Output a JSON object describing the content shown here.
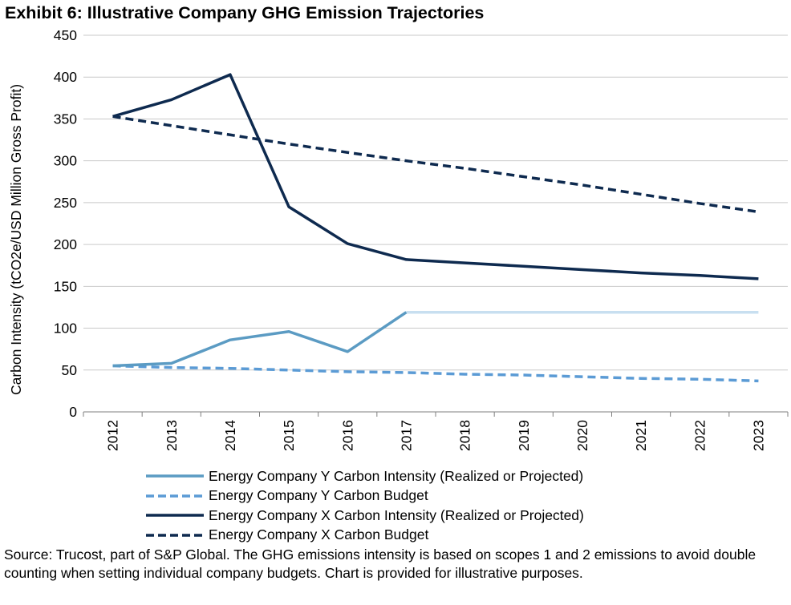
{
  "chart_data": {
    "type": "line",
    "title": "Exhibit 6: Illustrative Company GHG Emission Trajectories",
    "ylabel": "Carbon Intensity (tCO2e/USD Million Gross Profit)",
    "xlabel": "",
    "ylim": [
      0,
      450
    ],
    "yticks": [
      "0",
      "50",
      "100",
      "150",
      "200",
      "250",
      "300",
      "350",
      "400",
      "450"
    ],
    "categories": [
      "2012",
      "2013",
      "2014",
      "2015",
      "2016",
      "2017",
      "2018",
      "2019",
      "2020",
      "2021",
      "2022",
      "2023"
    ],
    "grid": true,
    "legend_position": "bottom",
    "series": [
      {
        "name": "Energy Company Y Carbon Intensity (Realized or Projected)",
        "color": "#5b9bc3",
        "style": "solid",
        "values": [
          55,
          58,
          86,
          96,
          72,
          119,
          119,
          119,
          119,
          119,
          119,
          119
        ],
        "projected_from_index": 5,
        "projected_color": "#c8dff0"
      },
      {
        "name": "Energy Company Y Carbon Budget",
        "color": "#5b9bd5",
        "style": "dashed",
        "values": [
          55,
          53,
          52,
          50,
          48,
          47,
          45,
          44,
          42,
          40,
          39,
          37
        ]
      },
      {
        "name": "Energy Company X Carbon Intensity (Realized or Projected)",
        "color": "#0e2a4f",
        "style": "solid",
        "values": [
          353,
          373,
          403,
          245,
          201,
          182,
          178,
          174,
          170,
          166,
          163,
          159
        ]
      },
      {
        "name": "Energy Company X Carbon Budget",
        "color": "#0e2a4f",
        "style": "dashed",
        "values": [
          353,
          342,
          331,
          320,
          310,
          300,
          291,
          281,
          271,
          260,
          249,
          239
        ]
      }
    ]
  },
  "source_note": "Source: Trucost, part of S&P Global.  The GHG emissions intensity is based on scopes 1 and 2 emissions to avoid double counting when setting individual company budgets.  Chart is provided for illustrative purposes."
}
